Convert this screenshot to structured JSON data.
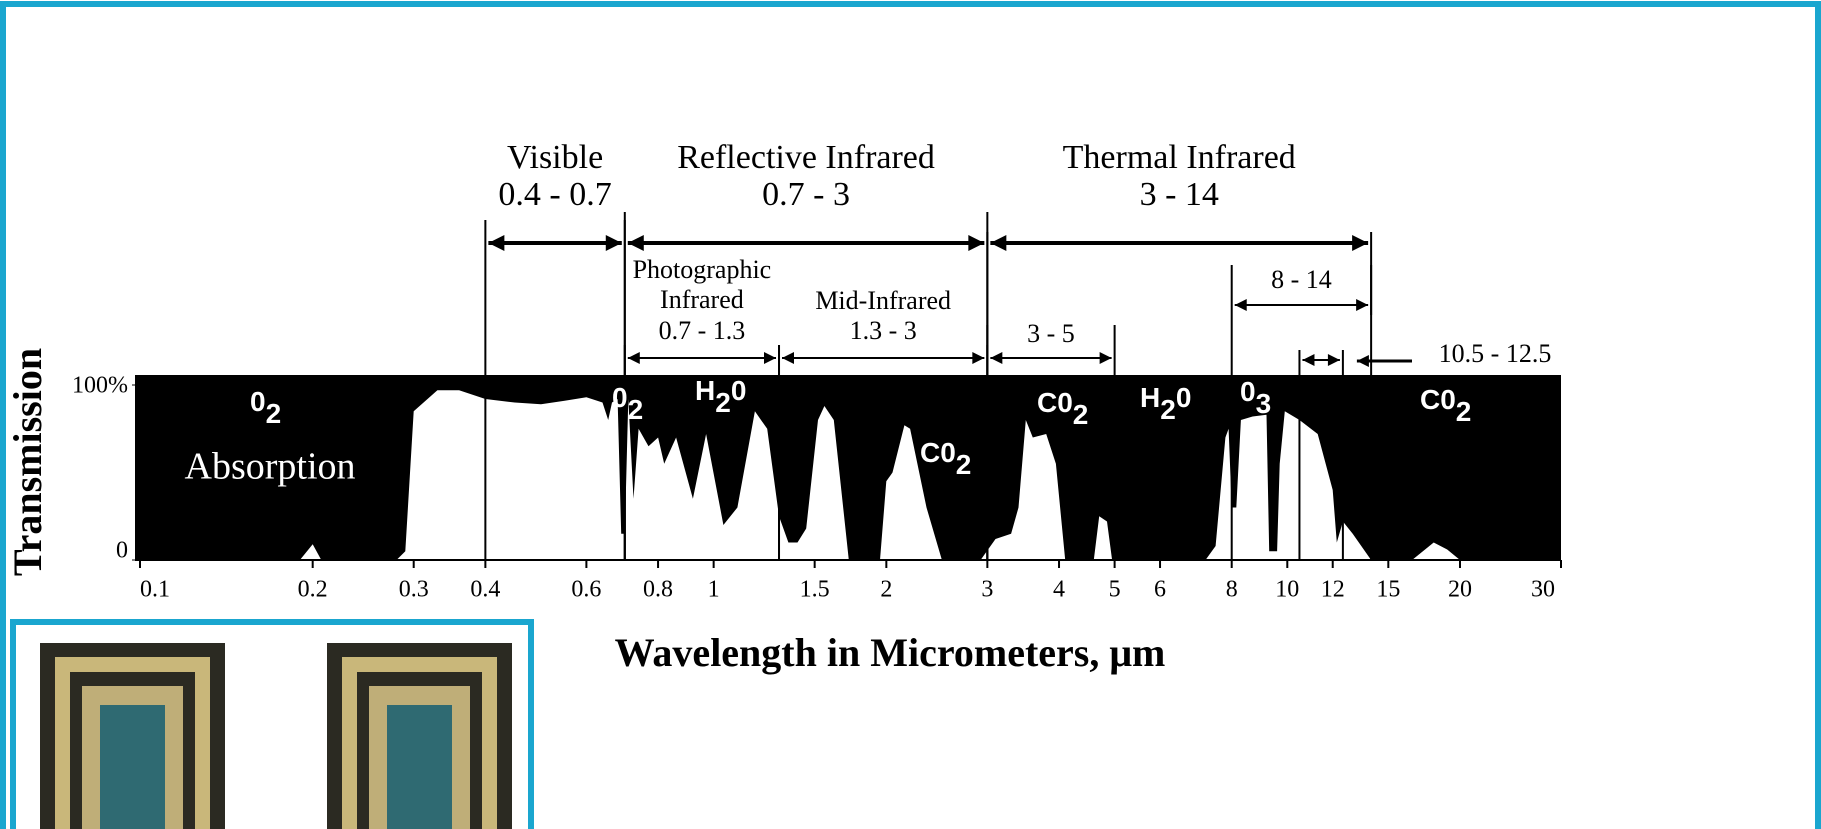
{
  "chart_data": {
    "type": "area",
    "x_label": "Wavelength in Micrometers, μm",
    "y_label": "Transmission",
    "inner_label": "Absorption",
    "log_x": true,
    "color": "#ffffff",
    "background_color": "#000000",
    "xlim": [
      0.1,
      30
    ],
    "ylim": [
      0,
      100
    ],
    "xticks": [
      0.1,
      0.2,
      0.3,
      0.4,
      0.6,
      0.8,
      1,
      1.5,
      2,
      3,
      4,
      5,
      6,
      8,
      10,
      12,
      15,
      20,
      30
    ],
    "yticks": [
      0,
      {
        "value": 100,
        "label": "100%"
      }
    ],
    "x": [
      0.19,
      0.2,
      0.207,
      0.25,
      0.28,
      0.29,
      0.3,
      0.33,
      0.36,
      0.4,
      0.45,
      0.5,
      0.55,
      0.6,
      0.64,
      0.655,
      0.665,
      0.68,
      0.69,
      0.7,
      0.71,
      0.725,
      0.74,
      0.77,
      0.8,
      0.82,
      0.86,
      0.92,
      0.97,
      1.04,
      1.1,
      1.18,
      1.24,
      1.3,
      1.35,
      1.4,
      1.45,
      1.52,
      1.56,
      1.62,
      1.72,
      1.85,
      1.95,
      2.0,
      2.05,
      2.15,
      2.2,
      2.35,
      2.5,
      2.7,
      2.92,
      3.1,
      3.3,
      3.4,
      3.5,
      3.6,
      3.8,
      3.95,
      4.1,
      4.4,
      4.6,
      4.7,
      4.85,
      4.95,
      6,
      7.2,
      7.5,
      7.8,
      7.9,
      8.0,
      8.15,
      8.3,
      8.7,
      9.2,
      9.3,
      9.6,
      9.7,
      9.9,
      10.5,
      11.3,
      12,
      12.2,
      12.5,
      13,
      14,
      15,
      16.5,
      18,
      19,
      20
    ],
    "values": [
      0,
      9,
      0,
      null,
      0,
      5,
      85,
      97,
      97,
      92,
      90,
      89,
      91,
      93,
      90,
      80,
      90,
      92,
      15,
      15,
      92,
      35,
      75,
      65,
      70,
      55,
      70,
      35,
      72,
      20,
      30,
      85,
      75,
      25,
      10,
      10,
      18,
      80,
      88,
      80,
      0,
      null,
      0,
      45,
      50,
      77,
      75,
      30,
      0,
      null,
      0,
      12,
      15,
      30,
      80,
      70,
      72,
      55,
      0,
      null,
      0,
      25,
      22,
      0,
      null,
      0,
      8,
      70,
      75,
      30,
      30,
      80,
      82,
      83,
      5,
      5,
      55,
      85,
      80,
      72,
      40,
      10,
      22,
      15,
      0,
      null,
      0,
      10,
      6,
      0
    ],
    "bands": [
      {
        "name": "Visible",
        "range": "0.4 - 0.7",
        "from": 0.4,
        "to": 0.7
      },
      {
        "name": "Reflective Infrared",
        "range": "0.7 - 3",
        "from": 0.7,
        "to": 3
      },
      {
        "name": "Thermal Infrared",
        "range": "3 - 14",
        "from": 3,
        "to": 14
      }
    ],
    "sub_bands": [
      {
        "name_lines": [
          "Photographic",
          "Infrared"
        ],
        "range": "0.7 - 1.3",
        "from": 0.7,
        "to": 1.3
      },
      {
        "name_lines": [
          "Mid-Infrared"
        ],
        "range": "1.3 - 3",
        "from": 1.3,
        "to": 3
      },
      {
        "range": "3 - 5",
        "from": 3,
        "to": 5
      },
      {
        "range": "8 - 14",
        "from": 8,
        "to": 14
      },
      {
        "range": "10.5 - 12.5",
        "from": 10.5,
        "to": 12.5
      }
    ],
    "gas_labels": [
      [
        "0",
        "2"
      ],
      [
        "0",
        "2"
      ],
      [
        "H",
        "2",
        "0"
      ],
      [
        "C0",
        "2"
      ],
      [
        "C0",
        "2"
      ],
      [
        "H",
        "2",
        "0"
      ],
      [
        "0",
        "3"
      ],
      [
        "C0",
        "2"
      ]
    ]
  }
}
